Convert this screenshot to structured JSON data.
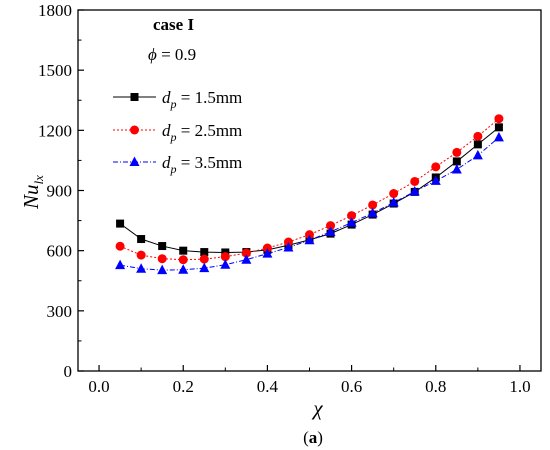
{
  "chart_data": {
    "type": "line",
    "x": [
      0.05,
      0.1,
      0.15,
      0.2,
      0.25,
      0.3,
      0.35,
      0.4,
      0.45,
      0.5,
      0.55,
      0.6,
      0.65,
      0.7,
      0.75,
      0.8,
      0.85,
      0.9,
      0.95
    ],
    "series": [
      {
        "name": "d_p = 1.5mm",
        "name_parts": {
          "sym": "d",
          "sub": "p",
          "rest": " = 1.5mm"
        },
        "color": "#000000",
        "marker": "square",
        "dash": "solid",
        "values": [
          735,
          658,
          623,
          600,
          593,
          591,
          593,
          604,
          627,
          654,
          685,
          730,
          780,
          835,
          893,
          965,
          1045,
          1130,
          1215
        ]
      },
      {
        "name": "d_p = 2.5mm",
        "name_parts": {
          "sym": "d",
          "sub": "p",
          "rest": " = 2.5mm"
        },
        "color": "#ff0000",
        "marker": "circle",
        "dash": "dotted",
        "values": [
          622,
          578,
          560,
          555,
          558,
          570,
          588,
          613,
          643,
          680,
          725,
          775,
          828,
          885,
          945,
          1018,
          1090,
          1170,
          1258
        ]
      },
      {
        "name": "d_p = 3.5mm",
        "name_parts": {
          "sym": "d",
          "sub": "p",
          "rest": " = 3.5mm"
        },
        "color": "#0000ff",
        "marker": "triangle",
        "dash": "dashdot",
        "values": [
          528,
          510,
          503,
          505,
          513,
          530,
          555,
          585,
          616,
          652,
          694,
          740,
          787,
          840,
          895,
          948,
          1005,
          1075,
          1165
        ]
      }
    ],
    "xlabel": "χ",
    "ylabel": {
      "base": "Nu",
      "sub": "lx"
    },
    "xlim": [
      -0.05,
      1.05
    ],
    "ylim": [
      0,
      1800
    ],
    "xticks": [
      "0.0",
      "0.2",
      "0.4",
      "0.6",
      "0.8",
      "1.0"
    ],
    "yticks": [
      "0",
      "300",
      "600",
      "900",
      "1200",
      "1500",
      "1800"
    ],
    "grid": false,
    "legend": "top-left",
    "annotations": {
      "case": "case I",
      "phi_symbol": "ϕ",
      "phi_value": " = 0.9"
    },
    "sublabel": {
      "open": "(",
      "letter": "a",
      "close": ")"
    }
  }
}
